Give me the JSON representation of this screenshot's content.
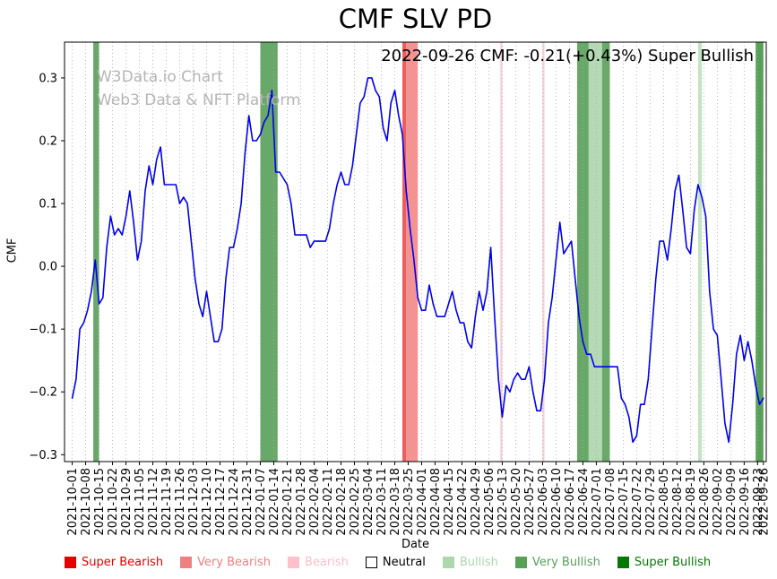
{
  "header": {
    "title": "CMF SLV PD"
  },
  "overlay": {
    "annotation": "2022-09-26 CMF: -0.21(+0.43%) Super Bullish",
    "watermark_line1": "W3Data.io Chart",
    "watermark_line2": "Web3 Data & NFT Platform"
  },
  "chart_data": {
    "type": "line",
    "title": "CMF SLV PD",
    "xlabel": "Date",
    "ylabel": "CMF",
    "ylim": [
      -0.311,
      0.357
    ],
    "grid": "vertical-dotted",
    "legend_position": "bottom",
    "x_unit": "days since 2021-10-01",
    "x_start_date": "2021-10-01",
    "x_end_date": "2022-09-26",
    "y_ticks": [
      -0.3,
      -0.2,
      -0.1,
      0.0,
      0.1,
      0.2,
      0.3
    ],
    "x_tick_labels": [
      "2021-10-01",
      "2021-10-08",
      "2021-10-15",
      "2021-10-22",
      "2021-10-29",
      "2021-11-05",
      "2021-11-12",
      "2021-11-19",
      "2021-11-26",
      "2021-12-03",
      "2021-12-10",
      "2021-12-17",
      "2021-12-24",
      "2021-12-31",
      "2022-01-07",
      "2022-01-14",
      "2022-01-21",
      "2022-01-28",
      "2022-02-04",
      "2022-02-11",
      "2022-02-18",
      "2022-02-25",
      "2022-03-04",
      "2022-03-11",
      "2022-03-18",
      "2022-03-25",
      "2022-04-01",
      "2022-04-08",
      "2022-04-15",
      "2022-04-22",
      "2022-04-29",
      "2022-05-06",
      "2022-05-13",
      "2022-05-20",
      "2022-05-27",
      "2022-06-03",
      "2022-06-10",
      "2022-06-17",
      "2022-06-24",
      "2022-07-01",
      "2022-07-08",
      "2022-07-15",
      "2022-07-22",
      "2022-07-29",
      "2022-08-05",
      "2022-08-12",
      "2022-08-19",
      "2022-08-26",
      "2022-09-02",
      "2022-09-09",
      "2022-09-16",
      "2022-09-23",
      "2022-09-26"
    ],
    "series": [
      {
        "name": "CMF",
        "color": "#0000ee",
        "start_day": 0,
        "step_days": 2,
        "values": [
          -0.21,
          -0.18,
          -0.1,
          -0.09,
          -0.07,
          -0.04,
          0.01,
          -0.06,
          -0.05,
          0.03,
          0.08,
          0.05,
          0.06,
          0.05,
          0.08,
          0.12,
          0.07,
          0.01,
          0.04,
          0.12,
          0.16,
          0.13,
          0.17,
          0.19,
          0.13,
          0.13,
          0.13,
          0.13,
          0.1,
          0.11,
          0.1,
          0.04,
          -0.02,
          -0.06,
          -0.08,
          -0.04,
          -0.08,
          -0.12,
          -0.12,
          -0.1,
          -0.02,
          0.03,
          0.03,
          0.06,
          0.1,
          0.18,
          0.24,
          0.2,
          0.2,
          0.21,
          0.23,
          0.24,
          0.28,
          0.15,
          0.15,
          0.14,
          0.13,
          0.1,
          0.05,
          0.05,
          0.05,
          0.05,
          0.03,
          0.04,
          0.04,
          0.04,
          0.04,
          0.06,
          0.1,
          0.13,
          0.15,
          0.13,
          0.13,
          0.16,
          0.21,
          0.26,
          0.27,
          0.3,
          0.3,
          0.28,
          0.27,
          0.22,
          0.2,
          0.26,
          0.28,
          0.24,
          0.21,
          0.12,
          0.06,
          0.01,
          -0.05,
          -0.07,
          -0.07,
          -0.03,
          -0.06,
          -0.08,
          -0.08,
          -0.08,
          -0.06,
          -0.04,
          -0.07,
          -0.09,
          -0.09,
          -0.12,
          -0.13,
          -0.08,
          -0.04,
          -0.07,
          -0.04,
          0.03,
          -0.08,
          -0.18,
          -0.24,
          -0.19,
          -0.2,
          -0.18,
          -0.17,
          -0.18,
          -0.18,
          -0.16,
          -0.2,
          -0.23,
          -0.23,
          -0.18,
          -0.09,
          -0.05,
          0.01,
          0.07,
          0.02,
          0.03,
          0.04,
          -0.02,
          -0.08,
          -0.12,
          -0.14,
          -0.14,
          -0.16,
          -0.16,
          -0.16,
          -0.16,
          -0.16,
          -0.16,
          -0.16,
          -0.21,
          -0.22,
          -0.24,
          -0.28,
          -0.27,
          -0.22,
          -0.22,
          -0.18,
          -0.1,
          -0.02,
          0.04,
          0.04,
          0.01,
          0.06,
          0.12,
          0.145,
          0.09,
          0.03,
          0.02,
          0.09,
          0.13,
          0.11,
          0.08,
          -0.04,
          -0.1,
          -0.11,
          -0.18,
          -0.25,
          -0.28,
          -0.22,
          -0.14,
          -0.11,
          -0.15,
          -0.12,
          -0.15,
          -0.19,
          -0.22,
          -0.21
        ]
      }
    ],
    "bands": [
      {
        "start": "2021-10-12",
        "end": "2021-10-15",
        "color": "#68a868",
        "label": "Very Bullish"
      },
      {
        "start": "2022-01-07",
        "end": "2022-01-16",
        "color": "#68a868",
        "label": "Very Bullish"
      },
      {
        "start": "2022-03-22",
        "end": "2022-03-24",
        "color": "#ee5c5c",
        "label": "Super Bearish"
      },
      {
        "start": "2022-03-24",
        "end": "2022-03-30",
        "color": "#f59393",
        "label": "Very Bearish"
      },
      {
        "start": "2022-05-12",
        "end": "2022-05-13",
        "color": "#f9ccd3",
        "label": "Bearish"
      },
      {
        "start": "2022-06-03",
        "end": "2022-06-04",
        "color": "#f9ccd3",
        "label": "Bearish"
      },
      {
        "start": "2022-06-21",
        "end": "2022-06-27",
        "color": "#68a868",
        "label": "Very Bullish"
      },
      {
        "start": "2022-06-27",
        "end": "2022-07-04",
        "color": "#b5d9b5",
        "label": "Bullish"
      },
      {
        "start": "2022-07-04",
        "end": "2022-07-08",
        "color": "#68a868",
        "label": "Very Bullish"
      },
      {
        "start": "2022-08-23",
        "end": "2022-08-25",
        "color": "#c4e3c4",
        "label": "Bullish"
      },
      {
        "start": "2022-09-22",
        "end": "2022-09-26",
        "color": "#57a057",
        "label": "Super Bullish"
      }
    ]
  },
  "legend": {
    "items": [
      {
        "label": "Super Bearish",
        "color": "#e50000",
        "text_color": "#e50000",
        "border": false
      },
      {
        "label": "Very Bearish",
        "color": "#f08080",
        "text_color": "#f08080",
        "border": false
      },
      {
        "label": "Bearish",
        "color": "#ffc0cb",
        "text_color": "#ffc0cb",
        "border": false
      },
      {
        "label": "Neutral",
        "color": "#ffffff",
        "text_color": "#000000",
        "border": true
      },
      {
        "label": "Bullish",
        "color": "#acd8ac",
        "text_color": "#acd8ac",
        "border": false
      },
      {
        "label": "Very Bullish",
        "color": "#58a058",
        "text_color": "#58a058",
        "border": false
      },
      {
        "label": "Super Bullish",
        "color": "#067806",
        "text_color": "#067806",
        "border": false
      }
    ]
  }
}
